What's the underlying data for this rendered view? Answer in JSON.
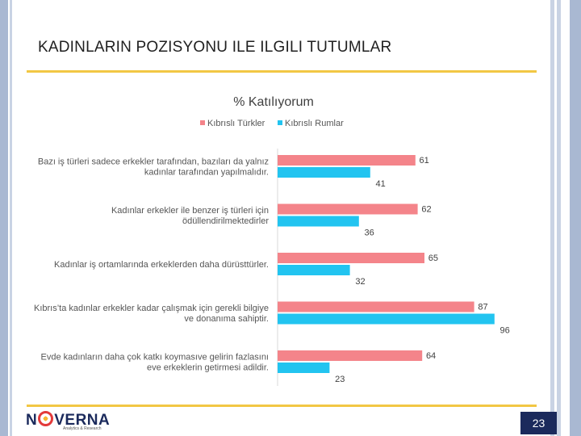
{
  "slide": {
    "title": "Kadınların Pozisyonu ile ilgili Tutumlar",
    "page_number": "23"
  },
  "logo": {
    "brand_before": "N",
    "brand_after": "VERNA",
    "tagline": "Analytics & Research"
  },
  "colors": {
    "series_1": "#f4848a",
    "series_2": "#22c4f0",
    "accent_rule": "#f2c744",
    "navy": "#1b2a5c"
  },
  "chart_data": {
    "type": "bar",
    "orientation": "horizontal",
    "title": "% Katılıyorum",
    "categories": [
      [
        "Bazı iş türleri sadece erkekler tarafından, bazıları da yalnız",
        "kadınlar tarafından yapılmalıdır."
      ],
      [
        "Kadınlar erkekler ile benzer iş türleri için",
        "ödüllendirilmektedirler"
      ],
      [
        "Kadınlar iş ortamlarında erkeklerden daha dürüsttürler."
      ],
      [
        "Kıbrıs’ta kadınlar erkekler kadar çalışmak için gerekli bilgiye",
        "ve donanıma sahiptir."
      ],
      [
        "Evde kadınların daha çok katkı koymasıve gelirin fazlasını",
        "eve erkeklerin getirmesi adildir."
      ]
    ],
    "series": [
      {
        "name": "Kıbrıslı Türkler",
        "values": [
          61,
          62,
          65,
          87,
          64
        ]
      },
      {
        "name": "Kıbrıslı Rumlar",
        "values": [
          41,
          36,
          32,
          96,
          23
        ]
      }
    ],
    "xlim": [
      0,
      100
    ],
    "legend_position": "top",
    "grid": false
  }
}
